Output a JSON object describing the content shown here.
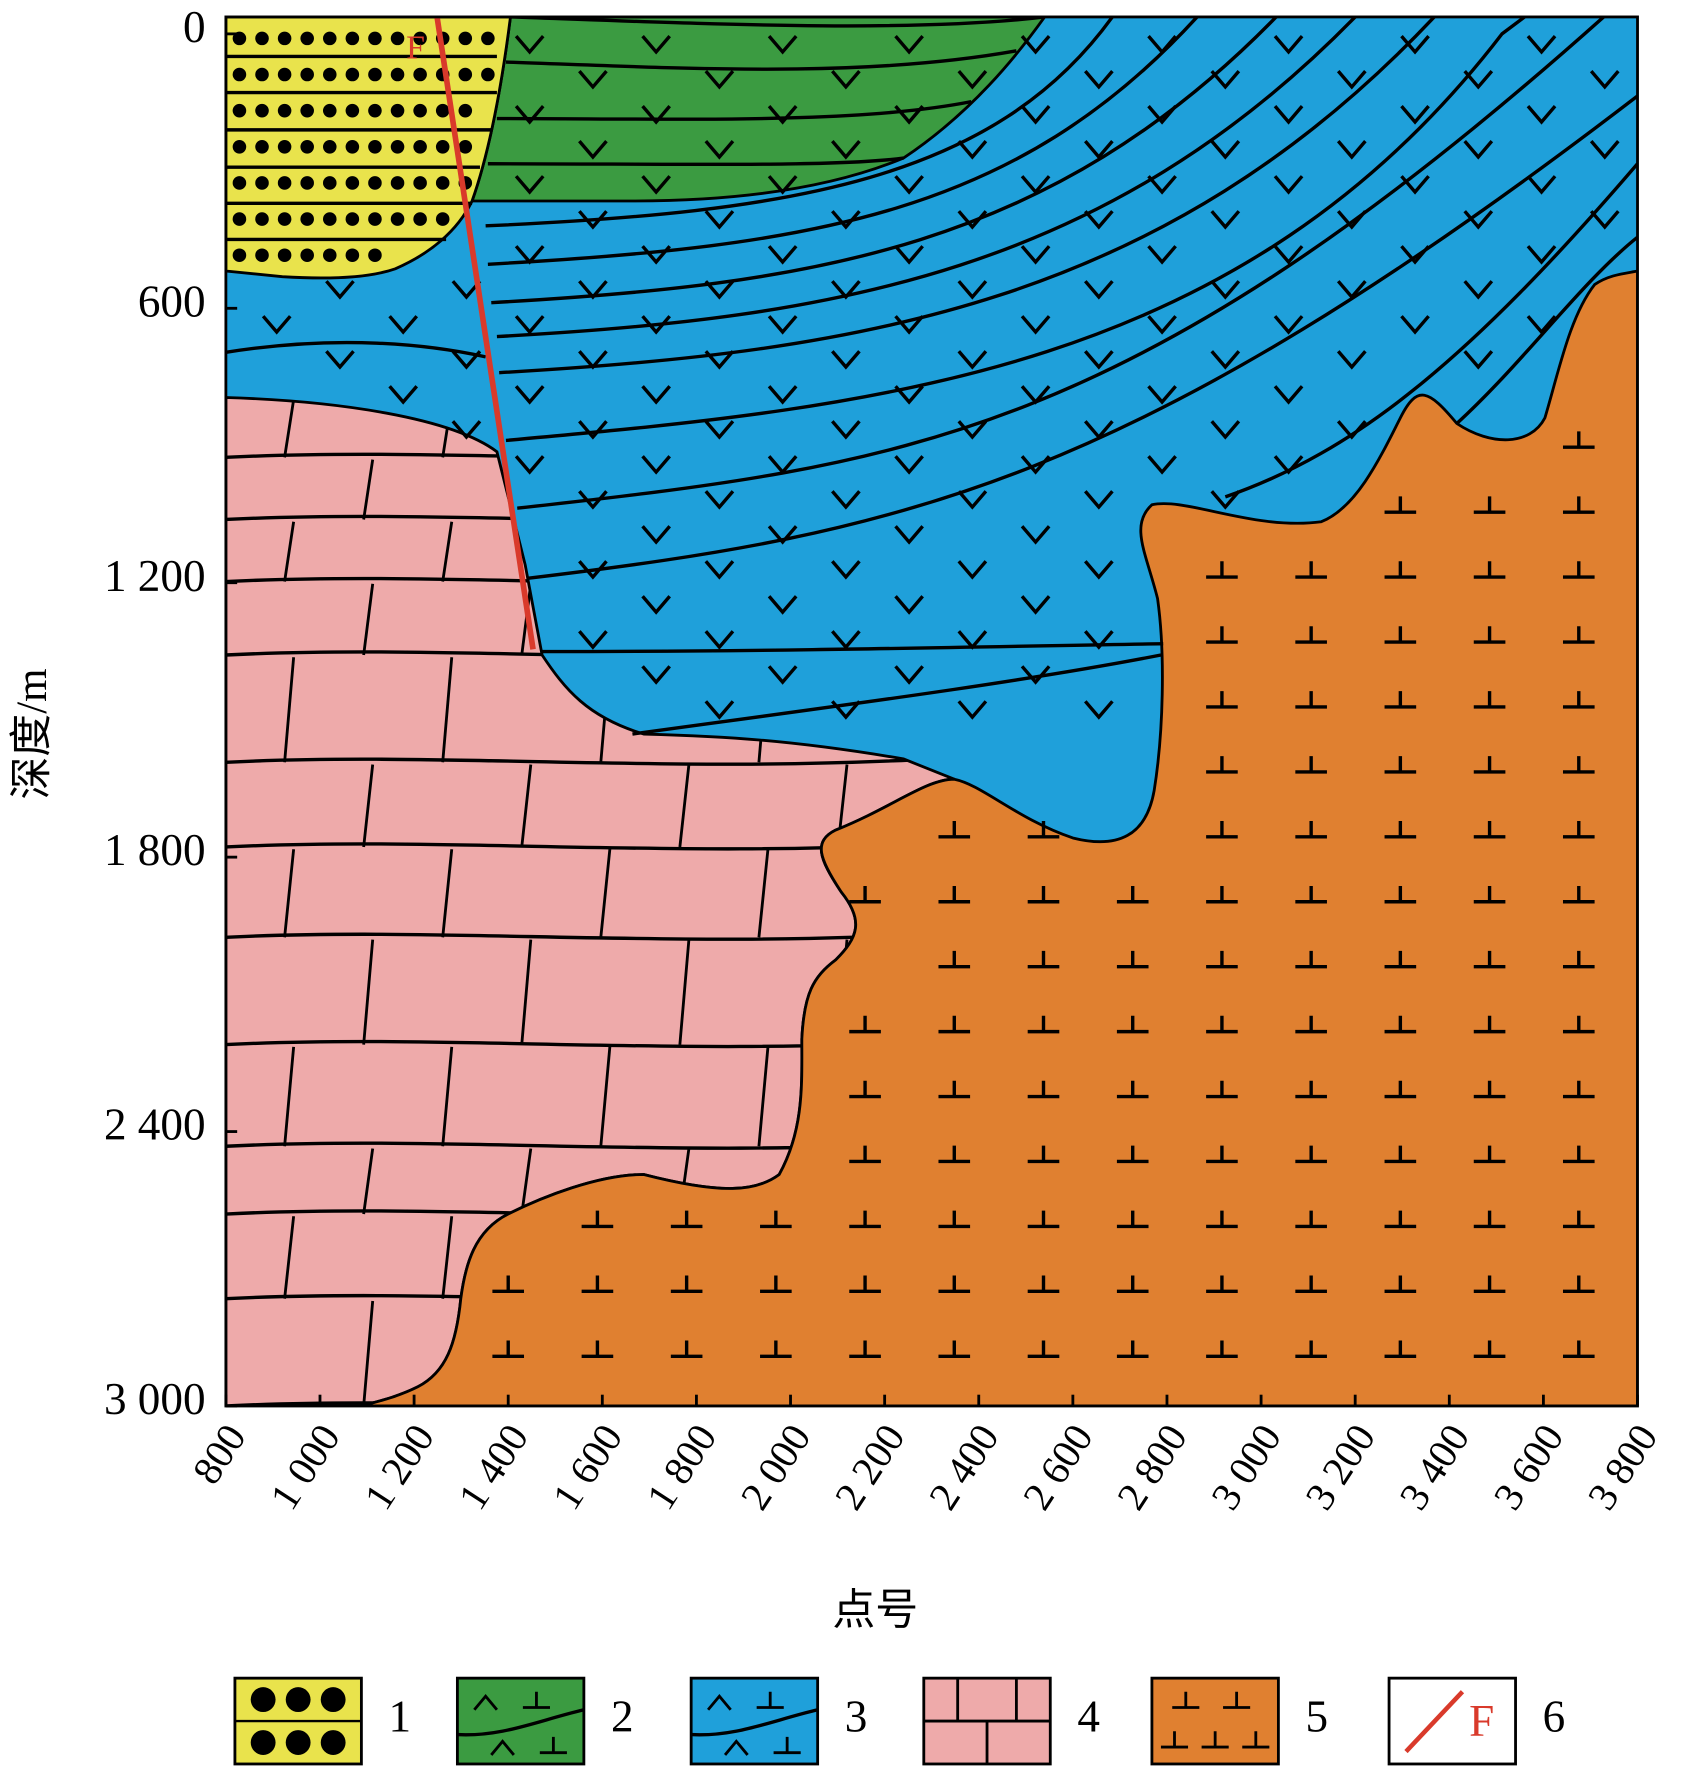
{
  "axes": {
    "x_label": "点号",
    "y_label": "深度/m",
    "xlim": [
      800,
      3800
    ],
    "ylim": [
      0,
      3000
    ],
    "xticks": [
      800,
      {
        "value": 1000,
        "label": "1 000"
      },
      {
        "value": 1200,
        "label": "1 200"
      },
      {
        "value": 1400,
        "label": "1 400"
      },
      {
        "value": 1600,
        "label": "1 600"
      },
      {
        "value": 1800,
        "label": "1 800"
      },
      {
        "value": 2000,
        "label": "2 000"
      },
      {
        "value": 2200,
        "label": "2 200"
      },
      {
        "value": 2400,
        "label": "2 400"
      },
      {
        "value": 2600,
        "label": "2 600"
      },
      {
        "value": 2800,
        "label": "2 800"
      },
      {
        "value": 3000,
        "label": "3 000"
      },
      {
        "value": 3200,
        "label": "3 200"
      },
      {
        "value": 3400,
        "label": "3 400"
      },
      {
        "value": 3600,
        "label": "3 600"
      },
      {
        "value": 3800,
        "label": "3 800"
      }
    ],
    "yticks": [
      0,
      600,
      {
        "value": 1200,
        "label": "1 200"
      },
      {
        "value": 1800,
        "label": "1 800"
      },
      {
        "value": 2400,
        "label": "2 400"
      },
      {
        "value": 3000,
        "label": "3 000"
      }
    ]
  },
  "fault_label": "F",
  "legend": {
    "items": [
      "1",
      "2",
      "3",
      "4",
      "5",
      "6"
    ],
    "fault_symbol": "F"
  }
}
